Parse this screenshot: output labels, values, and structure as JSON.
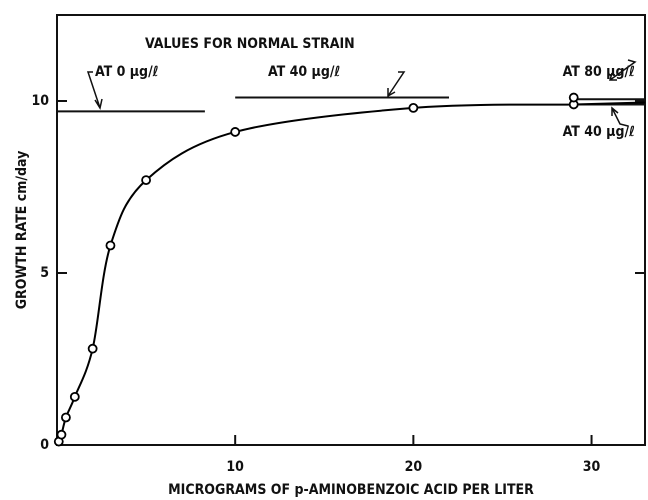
{
  "chart_data": {
    "type": "scatter",
    "x_label": "MICROGRAMS OF p-AMINOBENZOIC ACID PER LITER",
    "y_label": "GROWTH RATE cm/day",
    "x": [
      0.1,
      0.25,
      0.5,
      1,
      2,
      3,
      5,
      10,
      20,
      29,
      29
    ],
    "series": [
      {
        "name": null,
        "color": "#000000",
        "values": [
          0.1,
          0.3,
          0.8,
          1.4,
          2.8,
          5.8,
          7.7,
          9.1,
          9.8,
          9.9,
          10.1
        ]
      }
    ],
    "xlim": [
      0,
      33
    ],
    "xticks": [
      10,
      20,
      30
    ],
    "ylim": [
      0,
      12.5
    ],
    "yticks": [
      0,
      5,
      10
    ],
    "annotation_title": "VALUES FOR NORMAL STRAIN",
    "reference_lines": [
      {
        "label": "AT 0 μg/ℓ",
        "y": 9.7,
        "x": [
          0,
          8.3
        ]
      },
      {
        "label": "AT 40 μg/ℓ",
        "y": 10.1,
        "x": [
          10,
          22
        ]
      },
      {
        "label": "AT 80 μg/ℓ",
        "y": 10.05,
        "x": [
          29,
          33
        ]
      },
      {
        "label": "AT 40 μg/ℓ",
        "y": 9.9,
        "x": [
          29,
          33
        ]
      }
    ]
  }
}
